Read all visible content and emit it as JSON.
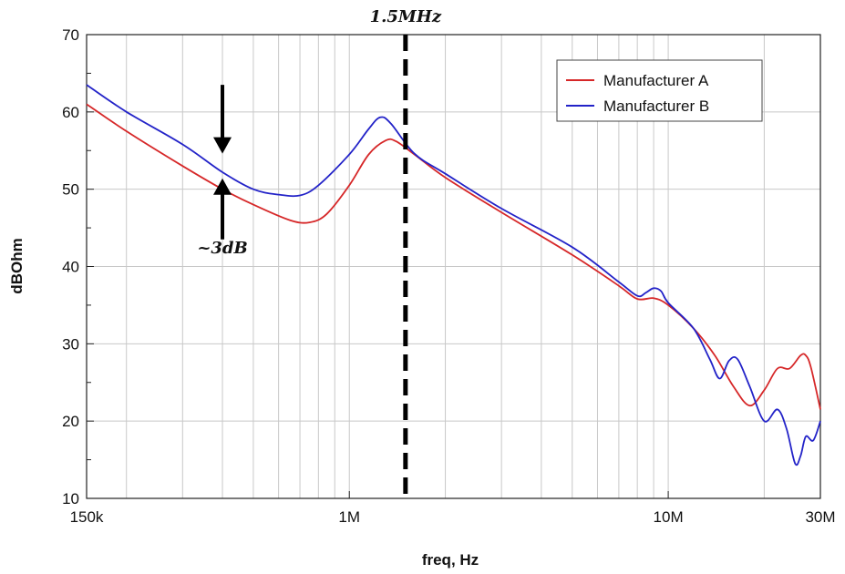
{
  "chart_data": {
    "type": "line",
    "xlabel": "freq, Hz",
    "ylabel": "dBOhm",
    "xscale": "log",
    "xlim": [
      150000,
      30000000
    ],
    "ylim": [
      10,
      70
    ],
    "grid": true,
    "legend_position": "top-right",
    "x_ticks": [
      {
        "value": 150000,
        "label": "150k"
      },
      {
        "value": 1000000,
        "label": "1M"
      },
      {
        "value": 10000000,
        "label": "10M"
      },
      {
        "value": 30000000,
        "label": "30M"
      }
    ],
    "y_ticks": [
      {
        "value": 10,
        "label": "10"
      },
      {
        "value": 20,
        "label": "20"
      },
      {
        "value": 30,
        "label": "30"
      },
      {
        "value": 40,
        "label": "40"
      },
      {
        "value": 50,
        "label": "50"
      },
      {
        "value": 60,
        "label": "60"
      },
      {
        "value": 70,
        "label": "70"
      }
    ],
    "series": [
      {
        "name": "Manufacturer A",
        "color": "#d62728",
        "points": [
          [
            150000,
            61.0
          ],
          [
            200000,
            57.5
          ],
          [
            300000,
            53.0
          ],
          [
            400000,
            50.0
          ],
          [
            500000,
            48.0
          ],
          [
            650000,
            46.0
          ],
          [
            750000,
            45.7
          ],
          [
            850000,
            46.8
          ],
          [
            1000000,
            50.5
          ],
          [
            1150000,
            54.5
          ],
          [
            1300000,
            56.3
          ],
          [
            1400000,
            56.2
          ],
          [
            1600000,
            54.5
          ],
          [
            2000000,
            51.5
          ],
          [
            3000000,
            47.0
          ],
          [
            5000000,
            41.5
          ],
          [
            7000000,
            37.5
          ],
          [
            8000000,
            35.8
          ],
          [
            9000000,
            35.9
          ],
          [
            10000000,
            35.0
          ],
          [
            12000000,
            32.0
          ],
          [
            14000000,
            28.5
          ],
          [
            16000000,
            24.5
          ],
          [
            18000000,
            22.0
          ],
          [
            20000000,
            24.0
          ],
          [
            22000000,
            26.8
          ],
          [
            24000000,
            26.8
          ],
          [
            26000000,
            28.5
          ],
          [
            27000000,
            28.5
          ],
          [
            28000000,
            27.0
          ],
          [
            30000000,
            21.5
          ]
        ]
      },
      {
        "name": "Manufacturer B",
        "color": "#2323c8",
        "points": [
          [
            150000,
            63.5
          ],
          [
            200000,
            60.0
          ],
          [
            300000,
            55.8
          ],
          [
            400000,
            52.2
          ],
          [
            500000,
            50.0
          ],
          [
            600000,
            49.3
          ],
          [
            700000,
            49.2
          ],
          [
            800000,
            50.5
          ],
          [
            1000000,
            54.5
          ],
          [
            1150000,
            57.8
          ],
          [
            1250000,
            59.3
          ],
          [
            1350000,
            58.5
          ],
          [
            1600000,
            54.6
          ],
          [
            2000000,
            52.0
          ],
          [
            3000000,
            47.5
          ],
          [
            5000000,
            42.5
          ],
          [
            7000000,
            38.0
          ],
          [
            8000000,
            36.2
          ],
          [
            8500000,
            36.6
          ],
          [
            9000000,
            37.2
          ],
          [
            9500000,
            36.8
          ],
          [
            10000000,
            35.3
          ],
          [
            12000000,
            32.0
          ],
          [
            13500000,
            28.0
          ],
          [
            14500000,
            25.5
          ],
          [
            15500000,
            27.8
          ],
          [
            16500000,
            28.0
          ],
          [
            18000000,
            24.5
          ],
          [
            20000000,
            20.0
          ],
          [
            22000000,
            21.5
          ],
          [
            23500000,
            19.0
          ],
          [
            25000000,
            14.5
          ],
          [
            26000000,
            15.5
          ],
          [
            27000000,
            18.0
          ],
          [
            28500000,
            17.5
          ],
          [
            30000000,
            20.0
          ]
        ]
      }
    ],
    "annotations": {
      "marker_label": "1.5MHz",
      "marker_x": 1500000,
      "arrow_x": 400000,
      "arrow_top_from": 63.5,
      "arrow_top_to": 54.6,
      "arrow_bottom_from": 43.5,
      "arrow_bottom_to": 51.4,
      "difference_label": "~3dB"
    }
  }
}
